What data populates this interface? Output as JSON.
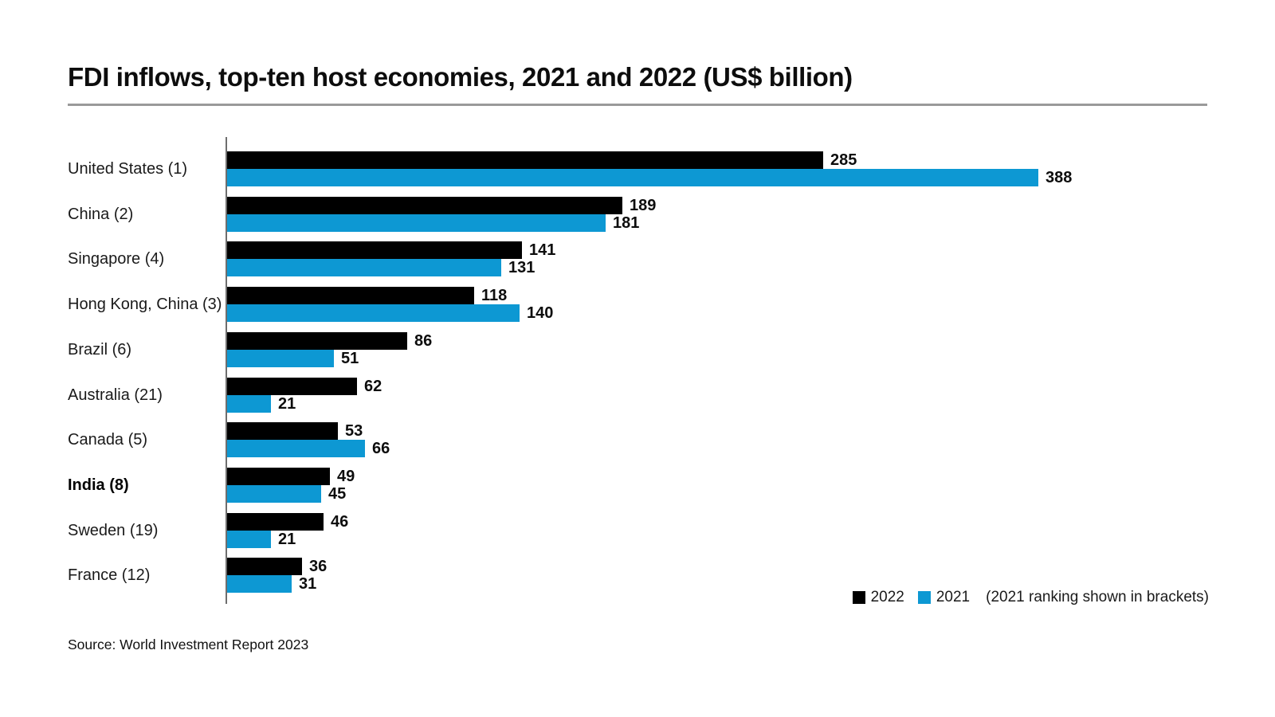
{
  "title": "FDI inflows, top-ten host economies, 2021 and 2022 (US$ billion)",
  "source": "Source: World Investment Report 2023",
  "legend": {
    "items": [
      {
        "label": "2022",
        "color": "#000000"
      },
      {
        "label": "2021",
        "color": "#0d98d3"
      }
    ],
    "note": "(2021 ranking shown in brackets)"
  },
  "colors": {
    "bar_2022": "#000000",
    "bar_2021": "#0d98d3",
    "axis_line": "#6e6e6e",
    "title_rule": "#9a9a9a",
    "text": "#0d0d0d"
  },
  "chart_data": {
    "type": "bar",
    "orientation": "horizontal",
    "title": "FDI inflows, top-ten host economies, 2021 and 2022 (US$ billion)",
    "categories": [
      "United States (1)",
      "China (2)",
      "Singapore (4)",
      "Hong Kong, China (3)",
      "Brazil (6)",
      "Australia (21)",
      "Canada (5)",
      "India (8)",
      "Sweden (19)",
      "France (12)"
    ],
    "emphasized_category": "India (8)",
    "series": [
      {
        "name": "2022",
        "color": "#000000",
        "values": [
          285,
          189,
          141,
          118,
          86,
          62,
          53,
          49,
          46,
          36
        ]
      },
      {
        "name": "2021",
        "color": "#0d98d3",
        "values": [
          388,
          181,
          131,
          140,
          51,
          21,
          66,
          45,
          21,
          31
        ]
      }
    ],
    "value_axis_max": 388,
    "data_labels": true,
    "grid": false,
    "legend_position": "bottom-right",
    "annotation": "(2021 ranking shown in brackets)",
    "xlabel": "",
    "ylabel": ""
  }
}
